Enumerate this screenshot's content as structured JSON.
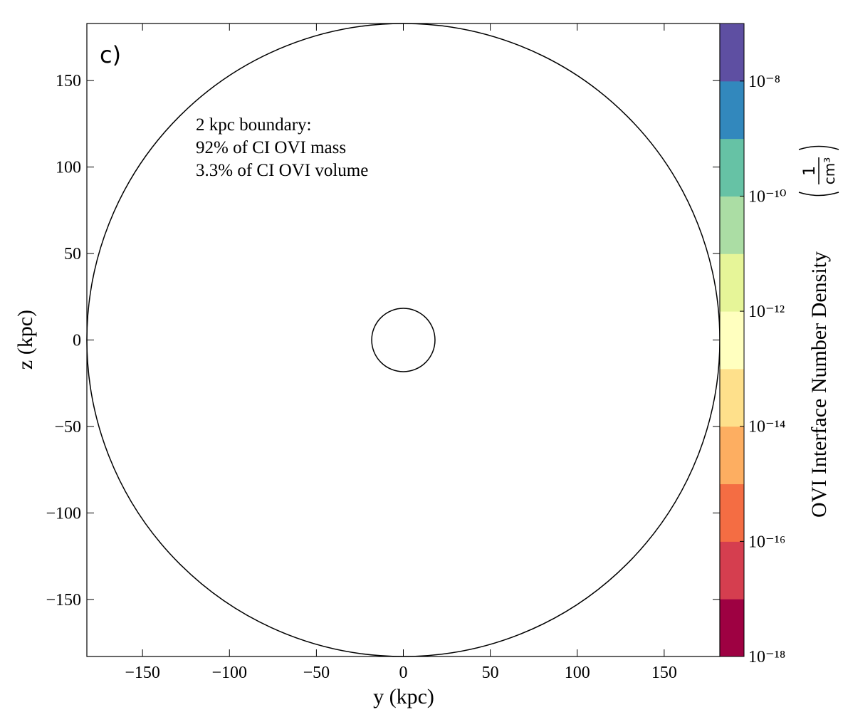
{
  "chart_data": {
    "type": "image",
    "panel_label": "c)",
    "annotation": [
      "2 kpc boundary:",
      "92% of CI OVI mass",
      "3.3% of CI OVI volume"
    ],
    "xlabel": "y (kpc)",
    "ylabel": "z (kpc)",
    "xlim": [
      -182,
      182
    ],
    "ylim": [
      -183,
      183
    ],
    "xticks": [
      {
        "value": -150,
        "label": "−150"
      },
      {
        "value": -100,
        "label": "−100"
      },
      {
        "value": -50,
        "label": "−50"
      },
      0,
      50,
      100,
      150
    ],
    "yticks": [
      {
        "value": -150,
        "label": "−150"
      },
      {
        "value": -100,
        "label": "−100"
      },
      {
        "value": -50,
        "label": "−50"
      },
      0,
      50,
      100,
      150
    ],
    "colorbar": {
      "label": "OVI Interface Number Density",
      "unit_numerator": "1",
      "unit_denominator": "cm³",
      "log_scale": true,
      "clim": [
        1e-18,
        1e-07
      ],
      "colors": [
        "#9e0142",
        "#d53e4f",
        "#f46d43",
        "#fdae61",
        "#fee08b",
        "#ffffbf",
        "#e6f598",
        "#abdda4",
        "#66c2a5",
        "#3288bd",
        "#5e4fa2"
      ],
      "ticks": [
        {
          "value": 1e-18,
          "label": "10⁻¹⁸"
        },
        {
          "value": 1e-16,
          "label": "10⁻¹⁶"
        },
        {
          "value": 1e-14,
          "label": "10⁻¹⁴"
        },
        {
          "value": 1e-12,
          "label": "10⁻¹²"
        },
        {
          "value": 1e-10,
          "label": "10⁻¹⁰"
        },
        {
          "value": 1e-08,
          "label": "10⁻⁸"
        }
      ]
    }
  }
}
